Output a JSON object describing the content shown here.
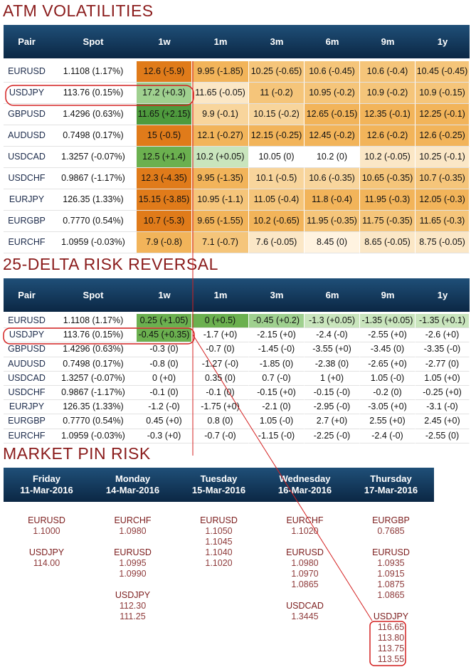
{
  "atm": {
    "title": "ATM VOLATILITIES",
    "header": [
      "Pair",
      "Spot",
      "1w",
      "1m",
      "3m",
      "6m",
      "9m",
      "1y"
    ],
    "rows": [
      [
        "EURUSD",
        "1.1108 (1.17%)",
        "12.6 (-5.9)",
        "9.95 (-1.85)",
        "10.25 (-0.65)",
        "10.6 (-0.45)",
        "10.6 (-0.4)",
        "10.45 (-0.45)"
      ],
      [
        "USDJPY",
        "113.76 (0.15%)",
        "17.2 (+0.3)",
        "11.65 (-0.05)",
        "11 (-0.2)",
        "10.95 (-0.2)",
        "10.9 (-0.2)",
        "10.9 (-0.15)"
      ],
      [
        "GBPUSD",
        "1.4296 (0.63%)",
        "11.65 (+2.15)",
        "9.9 (-0.1)",
        "10.15 (-0.2)",
        "12.65 (-0.15)",
        "12.35 (-0.1)",
        "12.25 (-0.1)"
      ],
      [
        "AUDUSD",
        "0.7498 (0.17%)",
        "15 (-0.5)",
        "12.1 (-0.27)",
        "12.15 (-0.25)",
        "12.45 (-0.2)",
        "12.6 (-0.2)",
        "12.6 (-0.25)"
      ],
      [
        "USDCAD",
        "1.3257 (-0.07%)",
        "12.5 (+1.4)",
        "10.2 (+0.05)",
        "10.05 (0)",
        "10.2 (0)",
        "10.2 (-0.05)",
        "10.25 (-0.1)"
      ],
      [
        "USDCHF",
        "0.9867 (-1.17%)",
        "12.3 (-4.35)",
        "9.95 (-1.35)",
        "10.1 (-0.5)",
        "10.6 (-0.35)",
        "10.65 (-0.35)",
        "10.7 (-0.35)"
      ],
      [
        "EURJPY",
        "126.35 (1.33%)",
        "15.15 (-3.85)",
        "10.95 (-1.1)",
        "11.05 (-0.4)",
        "11.8 (-0.4)",
        "11.95 (-0.3)",
        "12.05 (-0.3)"
      ],
      [
        "EURGBP",
        "0.7770 (0.54%)",
        "10.7 (-5.3)",
        "9.65 (-1.55)",
        "10.2 (-0.65)",
        "11.95 (-0.35)",
        "11.75 (-0.35)",
        "11.65 (-0.3)"
      ],
      [
        "EURCHF",
        "1.0959 (-0.03%)",
        "7.9 (-0.8)",
        "7.1 (-0.7)",
        "7.6 (-0.05)",
        "8.45 (0)",
        "8.65 (-0.05)",
        "8.75 (-0.05)"
      ]
    ]
  },
  "risk_reversal": {
    "title": "25-DELTA RISK REVERSAL",
    "header": [
      "Pair",
      "Spot",
      "1w",
      "1m",
      "3m",
      "6m",
      "9m",
      "1y"
    ],
    "rows": [
      [
        "EURUSD",
        "1.1108 (1.17%)",
        "0.25 (+1.05)",
        "0 (+0.5)",
        "-0.45 (+0.2)",
        "-1.3 (+0.05)",
        "-1.35 (+0.05)",
        "-1.35 (+0.1)"
      ],
      [
        "USDJPY",
        "113.76 (0.15%)",
        "-0.45 (+0.35)",
        "-1.7 (+0)",
        "-2.15 (+0)",
        "-2.4 (-0)",
        "-2.55 (+0)",
        "-2.6 (+0)"
      ],
      [
        "GBPUSD",
        "1.4296 (0.63%)",
        "-0.3 (0)",
        "-0.7 (0)",
        "-1.45 (-0)",
        "-3.55 (+0)",
        "-3.45 (0)",
        "-3.35 (-0)"
      ],
      [
        "AUDUSD",
        "0.7498 (0.17%)",
        "-0.8 (0)",
        "-1.27 (-0)",
        "-1.85 (0)",
        "-2.38 (0)",
        "-2.65 (+0)",
        "-2.77 (0)"
      ],
      [
        "USDCAD",
        "1.3257 (-0.07%)",
        "0 (+0)",
        "0.35 (0)",
        "0.7 (-0)",
        "1 (+0)",
        "1.05 (-0)",
        "1.05 (+0)"
      ],
      [
        "USDCHF",
        "0.9867 (-1.17%)",
        "-0.1 (0)",
        "-0.1 (0)",
        "-0.15 (+0)",
        "-0.15 (-0)",
        "-0.2 (0)",
        "-0.25 (+0)"
      ],
      [
        "EURJPY",
        "126.35 (1.33%)",
        "-1.2 (-0)",
        "-1.75 (+0)",
        "-2.1 (0)",
        "-2.95 (-0)",
        "-3.05 (+0)",
        "-3.1 (-0)"
      ],
      [
        "EURGBP",
        "0.7770 (0.54%)",
        "0.45 (+0)",
        "0.8 (0)",
        "1.05 (-0)",
        "2.7 (+0)",
        "2.55 (+0)",
        "2.45 (+0)"
      ],
      [
        "EURCHF",
        "1.0959 (-0.03%)",
        "-0.3 (+0)",
        "-0.7 (-0)",
        "-1.15 (-0)",
        "-2.25 (-0)",
        "-2.4 (-0)",
        "-2.55 (0)"
      ]
    ]
  },
  "pin_risk": {
    "title": "MARKET PIN RISK",
    "days": [
      {
        "day": "Friday",
        "date": "11-Mar-2016",
        "groups": [
          {
            "pair": "EURUSD",
            "levels": [
              "1.1000"
            ]
          },
          {
            "pair": "USDJPY",
            "levels": [
              "114.00"
            ]
          }
        ]
      },
      {
        "day": "Monday",
        "date": "14-Mar-2016",
        "groups": [
          {
            "pair": "EURCHF",
            "levels": [
              "1.0980"
            ]
          },
          {
            "pair": "EURUSD",
            "levels": [
              "1.0995",
              "1.0990"
            ]
          },
          {
            "pair": "USDJPY",
            "levels": [
              "112.30",
              "111.25"
            ]
          }
        ]
      },
      {
        "day": "Tuesday",
        "date": "15-Mar-2016",
        "groups": [
          {
            "pair": "EURUSD",
            "levels": [
              "1.1050",
              "1.1045",
              "1.1040",
              "1.1020"
            ]
          }
        ]
      },
      {
        "day": "Wednesday",
        "date": "16-Mar-2016",
        "groups": [
          {
            "pair": "EURCHF",
            "levels": [
              "1.1020"
            ]
          },
          {
            "pair": "EURUSD",
            "levels": [
              "1.0980",
              "1.0970",
              "1.0865"
            ]
          },
          {
            "pair": "USDCAD",
            "levels": [
              "1.3445"
            ]
          }
        ]
      },
      {
        "day": "Thursday",
        "date": "17-Mar-2016",
        "groups": [
          {
            "pair": "EURGBP",
            "levels": [
              "0.7685"
            ]
          },
          {
            "pair": "EURUSD",
            "levels": [
              "1.0935",
              "1.0915",
              "1.0875",
              "1.0865"
            ]
          },
          {
            "pair": "USDJPY",
            "levels": [
              "116.65",
              "113.80",
              "113.75",
              "113.55"
            ]
          }
        ]
      }
    ]
  }
}
